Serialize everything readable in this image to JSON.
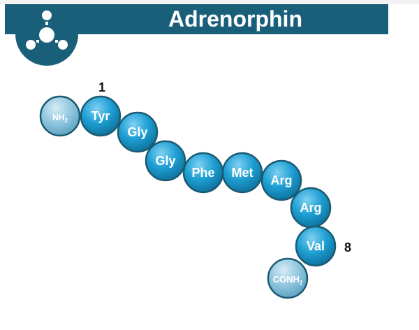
{
  "header": {
    "title": "Adrenorphin",
    "logo_icon": "molecule-icon"
  },
  "colors": {
    "banner": "#1a5f7a",
    "residue": "#1e9fd3",
    "terminal": "#8cc4dc",
    "outline": "#1b5a72"
  },
  "peptide": {
    "start_label": "1",
    "end_label": "8",
    "n_terminus": {
      "label": "NH",
      "sub": "2"
    },
    "residues": [
      "Tyr",
      "Gly",
      "Gly",
      "Phe",
      "Met",
      "Arg",
      "Arg",
      "Val"
    ],
    "c_terminus": {
      "label": "CONH",
      "sub": "2"
    }
  }
}
